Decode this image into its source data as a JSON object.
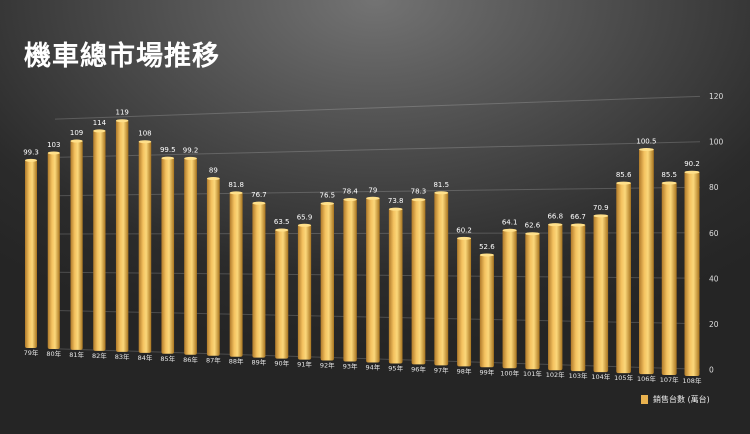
{
  "title": "機車總市場推移",
  "chart_data": {
    "type": "bar",
    "title": "機車總市場推移",
    "categories": [
      "79年",
      "80年",
      "81年",
      "82年",
      "83年",
      "84年",
      "85年",
      "86年",
      "87年",
      "88年",
      "89年",
      "90年",
      "91年",
      "92年",
      "93年",
      "94年",
      "95年",
      "96年",
      "97年",
      "98年",
      "99年",
      "100年",
      "101年",
      "102年",
      "103年",
      "104年",
      "105年",
      "106年",
      "107年",
      "108年"
    ],
    "series": [
      {
        "name": "銷售台數 (萬台)",
        "values": [
          99.3,
          103,
          109,
          114,
          119,
          108,
          99.5,
          99.2,
          89,
          81.8,
          76.7,
          63.5,
          65.9,
          76.5,
          78.4,
          79,
          73.8,
          78.3,
          81.5,
          60.2,
          52.6,
          64.1,
          62.6,
          66.8,
          66.7,
          70.9,
          85.6,
          100.5,
          85.5,
          90.2
        ]
      }
    ],
    "yticks": [
      0,
      20,
      40,
      60,
      80,
      100,
      120
    ],
    "ylim": [
      0,
      120
    ],
    "grid": true,
    "legend": "bottom-right",
    "bar_color": "#e9b24f",
    "background": "#3a3a3a"
  }
}
